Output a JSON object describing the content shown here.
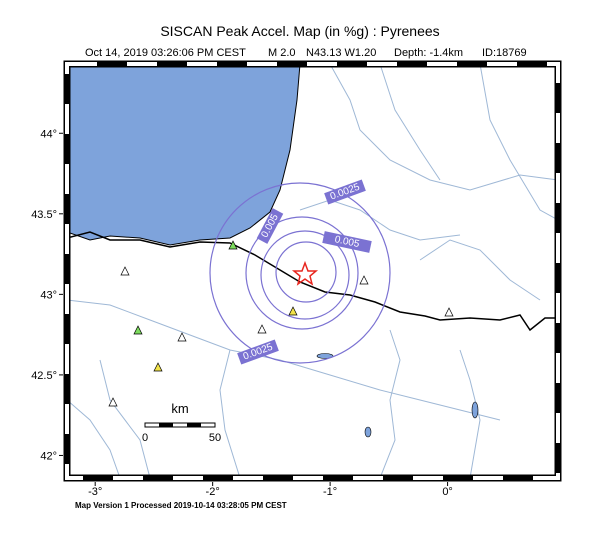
{
  "header": {
    "title": "SISCAN Peak Accel. Map (in %g) : Pyrenees",
    "event": {
      "time": "Oct 14, 2019 03:26:06 PM CEST",
      "magnitude": "M 2.0",
      "location": "N43.13 W1.20",
      "depth": "Depth: -1.4km",
      "id": "ID:18769"
    }
  },
  "map": {
    "lon_range": [
      -3.24,
      0.94
    ],
    "lat_range": [
      41.86,
      44.43
    ],
    "lon_ticks": [
      {
        "value": -3,
        "label": "-3°"
      },
      {
        "value": -2,
        "label": "-2°"
      },
      {
        "value": -1,
        "label": "-1°"
      },
      {
        "value": 0,
        "label": "0°"
      }
    ],
    "lat_ticks": [
      {
        "value": 42,
        "label": "42°"
      },
      {
        "value": 42.5,
        "label": "42.5°"
      },
      {
        "value": 43,
        "label": "43°"
      },
      {
        "value": 43.5,
        "label": "43.5°"
      },
      {
        "value": 44,
        "label": "44°"
      }
    ],
    "contour_labels": [
      "0.0025",
      "0.005",
      "0.005",
      "0.0025"
    ],
    "scale_bar": {
      "unit": "km",
      "labels": [
        "0",
        "50"
      ]
    }
  },
  "footer": "Map Version 1 Processed 2019-10-14 03:28:05 PM CEST"
}
